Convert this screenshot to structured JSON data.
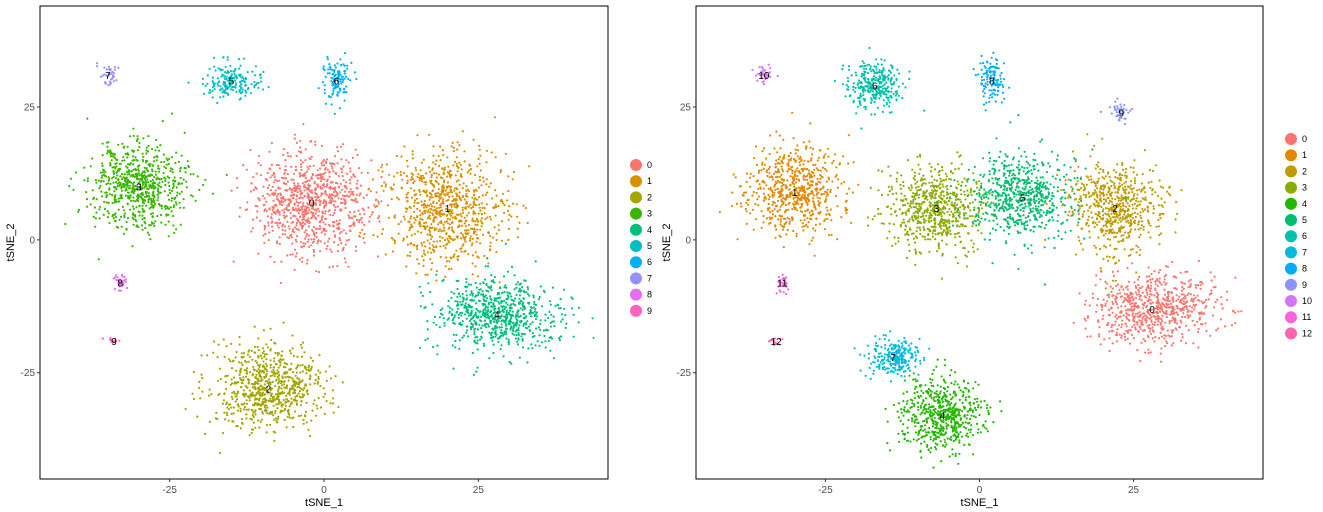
{
  "chart_data": [
    {
      "type": "scatter",
      "xlabel": "tSNE_1",
      "ylabel": "tSNE_2",
      "xlim": [
        -46,
        46
      ],
      "ylim": [
        -45,
        44
      ],
      "xticks": [
        -25,
        0,
        25
      ],
      "yticks": [
        -25,
        0,
        25
      ],
      "grid": false,
      "legend_position": "right",
      "legend_entries": [
        "0",
        "1",
        "2",
        "3",
        "4",
        "5",
        "6",
        "7",
        "8",
        "9"
      ],
      "colors": [
        "#F8766D",
        "#D89000",
        "#A3A500",
        "#39B600",
        "#00BF7D",
        "#00BFC4",
        "#00B0F6",
        "#9590FF",
        "#E76BF3",
        "#FF62BC"
      ],
      "clusters": [
        {
          "label": "0",
          "center": [
            -2,
            7
          ]
        },
        {
          "label": "1",
          "center": [
            20,
            6
          ]
        },
        {
          "label": "2",
          "center": [
            -9,
            -28
          ]
        },
        {
          "label": "3",
          "center": [
            -30,
            10
          ]
        },
        {
          "label": "4",
          "center": [
            28,
            -14
          ]
        },
        {
          "label": "5",
          "center": [
            -15,
            30
          ]
        },
        {
          "label": "6",
          "center": [
            2,
            30
          ]
        },
        {
          "label": "7",
          "center": [
            -35,
            31
          ]
        },
        {
          "label": "8",
          "center": [
            -33,
            -8
          ]
        },
        {
          "label": "9",
          "center": [
            -34,
            -19
          ]
        }
      ]
    },
    {
      "type": "scatter",
      "xlabel": "tSNE_1",
      "ylabel": "tSNE_2",
      "xlim": [
        -46,
        46
      ],
      "ylim": [
        -45,
        44
      ],
      "xticks": [
        -25,
        0,
        25
      ],
      "yticks": [
        -25,
        0,
        25
      ],
      "grid": false,
      "legend_position": "right",
      "legend_entries": [
        "0",
        "1",
        "2",
        "3",
        "4",
        "5",
        "6",
        "7",
        "8",
        "9",
        "10",
        "11",
        "12"
      ],
      "colors": [
        "#F8766D",
        "#E18A00",
        "#BE9C00",
        "#8CAB00",
        "#24B700",
        "#00BE70",
        "#00C1AB",
        "#00BBDA",
        "#00ACFC",
        "#8B93FF",
        "#D575FE",
        "#F962DD",
        "#FF65AC"
      ],
      "clusters": [
        {
          "label": "0",
          "center": [
            28,
            -13
          ]
        },
        {
          "label": "1",
          "center": [
            -30,
            9
          ]
        },
        {
          "label": "2",
          "center": [
            22,
            6
          ]
        },
        {
          "label": "3",
          "center": [
            -7,
            6
          ]
        },
        {
          "label": "4",
          "center": [
            -6,
            -33
          ]
        },
        {
          "label": "5",
          "center": [
            7,
            8
          ]
        },
        {
          "label": "6",
          "center": [
            -17,
            29
          ]
        },
        {
          "label": "7",
          "center": [
            -14,
            -22
          ]
        },
        {
          "label": "8",
          "center": [
            2,
            30
          ]
        },
        {
          "label": "9",
          "center": [
            23,
            24
          ]
        },
        {
          "label": "10",
          "center": [
            -35,
            31
          ]
        },
        {
          "label": "11",
          "center": [
            -32,
            -8
          ]
        },
        {
          "label": "12",
          "center": [
            -33,
            -19
          ]
        }
      ]
    }
  ]
}
